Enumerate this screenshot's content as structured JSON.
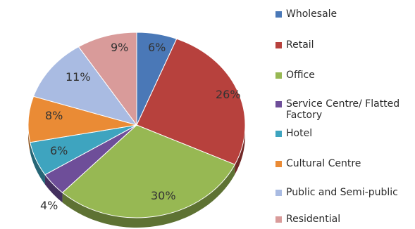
{
  "chart_data": {
    "type": "pie",
    "title": "",
    "legend": "right",
    "slices": [
      {
        "label": "Wholesale",
        "value": 6,
        "display": "6%",
        "color": "#4a78b7"
      },
      {
        "label": "Retail",
        "value": 26,
        "display": "26%",
        "color": "#b7413d"
      },
      {
        "label": "Office",
        "value": 30,
        "display": "30%",
        "color": "#97b853"
      },
      {
        "label": "Service Centre/ Flatted Factory",
        "value": 4,
        "display": "4%",
        "color": "#6e4e99"
      },
      {
        "label": "Hotel",
        "value": 6,
        "display": "6%",
        "color": "#3ea4bf"
      },
      {
        "label": "Cultural Centre",
        "value": 8,
        "display": "8%",
        "color": "#ea8b35"
      },
      {
        "label": "Public and Semi-public",
        "value": 11,
        "display": "11%",
        "color": "#a9bbe2"
      },
      {
        "label": "Residential",
        "value": 9,
        "display": "9%",
        "color": "#d99b9a"
      }
    ]
  }
}
